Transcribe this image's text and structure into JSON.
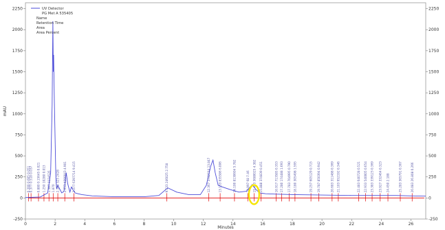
{
  "chart_data": {
    "type": "line",
    "xlabel": "Minutes",
    "ylabel": "mAU",
    "xlim": [
      0,
      27
    ],
    "ylim": [
      -250,
      2320
    ],
    "x_ticks": [
      0,
      2,
      4,
      6,
      8,
      10,
      12,
      14,
      16,
      18,
      20,
      22,
      24,
      26
    ],
    "y_ticks": [
      -250,
      0,
      250,
      500,
      750,
      1000,
      1250,
      1500,
      1750,
      2000,
      2250
    ],
    "grid": false,
    "legend": {
      "placement": "top-left",
      "series": [
        "UV Detector",
        "PG Met A 535405"
      ],
      "fields": [
        "Name",
        "Retention Time",
        "Area",
        "Area Percent"
      ]
    },
    "colors": {
      "trace": "#4a4ad8",
      "baseline": "#e00000",
      "highlight": "#f5e500"
    },
    "series": [
      {
        "name": "UV Detector",
        "x": [
          0.0,
          0.5,
          1.0,
          1.5,
          1.7,
          1.8,
          1.85,
          1.88,
          1.9,
          1.95,
          2.0,
          2.05,
          2.1,
          2.18,
          2.3,
          2.45,
          2.6,
          2.75,
          2.85,
          3.0,
          3.1,
          3.2,
          3.35,
          3.55,
          3.8,
          4.5,
          6.0,
          8.0,
          9.0,
          9.6,
          10.2,
          11.0,
          11.8,
          12.2,
          12.5,
          12.65,
          12.8,
          13.0,
          13.3,
          13.8,
          14.4,
          14.9,
          15.3,
          15.55,
          15.8,
          16.2,
          17.0,
          18.0,
          20.0,
          22.0,
          24.0,
          25.0,
          26.0,
          27.0
        ],
        "y": [
          5,
          8,
          12,
          60,
          300,
          1100,
          2100,
          1500,
          1700,
          1150,
          700,
          250,
          110,
          150,
          110,
          60,
          80,
          300,
          170,
          70,
          130,
          100,
          60,
          50,
          40,
          25,
          15,
          15,
          30,
          120,
          70,
          40,
          40,
          150,
          380,
          450,
          300,
          150,
          130,
          100,
          70,
          80,
          160,
          100,
          60,
          50,
          45,
          40,
          35,
          30,
          30,
          30,
          25,
          22
        ]
      }
    ],
    "peak_labels": [
      "0.200  0.605 0.051",
      "0.377  0.518 0.037",
      "0.880  0.15645  0.021",
      "1.250  10280  0.013",
      "1.587  1174535",
      "1.870",
      "2.183  323 2428",
      "2.653  4290043  4.901",
      "3.277  6397714  9.415",
      "9.533  246025  2.758",
      "12.367  3742744  13.847",
      "13.133  835586  6.006",
      "14.100  8130604  5.782",
      "14.997  68  7.46",
      "15.433  3680025  4.382",
      "15.888  374839  0.451",
      "16.917  713585  0.353",
      "17.280  174488  1.693",
      "17.783  704995  0.790",
      "18.180  305498  1.595",
      "19.257  605129  0.715",
      "19.787  850394  0.942",
      "20.683  311488  0.369",
      "21.103  952192  0.346",
      "22.483  640728  0.521",
      "22.933  540005  0.654",
      "23.383  339123  0.369",
      "23.927  332464  0.323",
      "24.450  2.188",
      "25.283  365791  0.367",
      "26.083  26.808  0.266"
    ]
  }
}
